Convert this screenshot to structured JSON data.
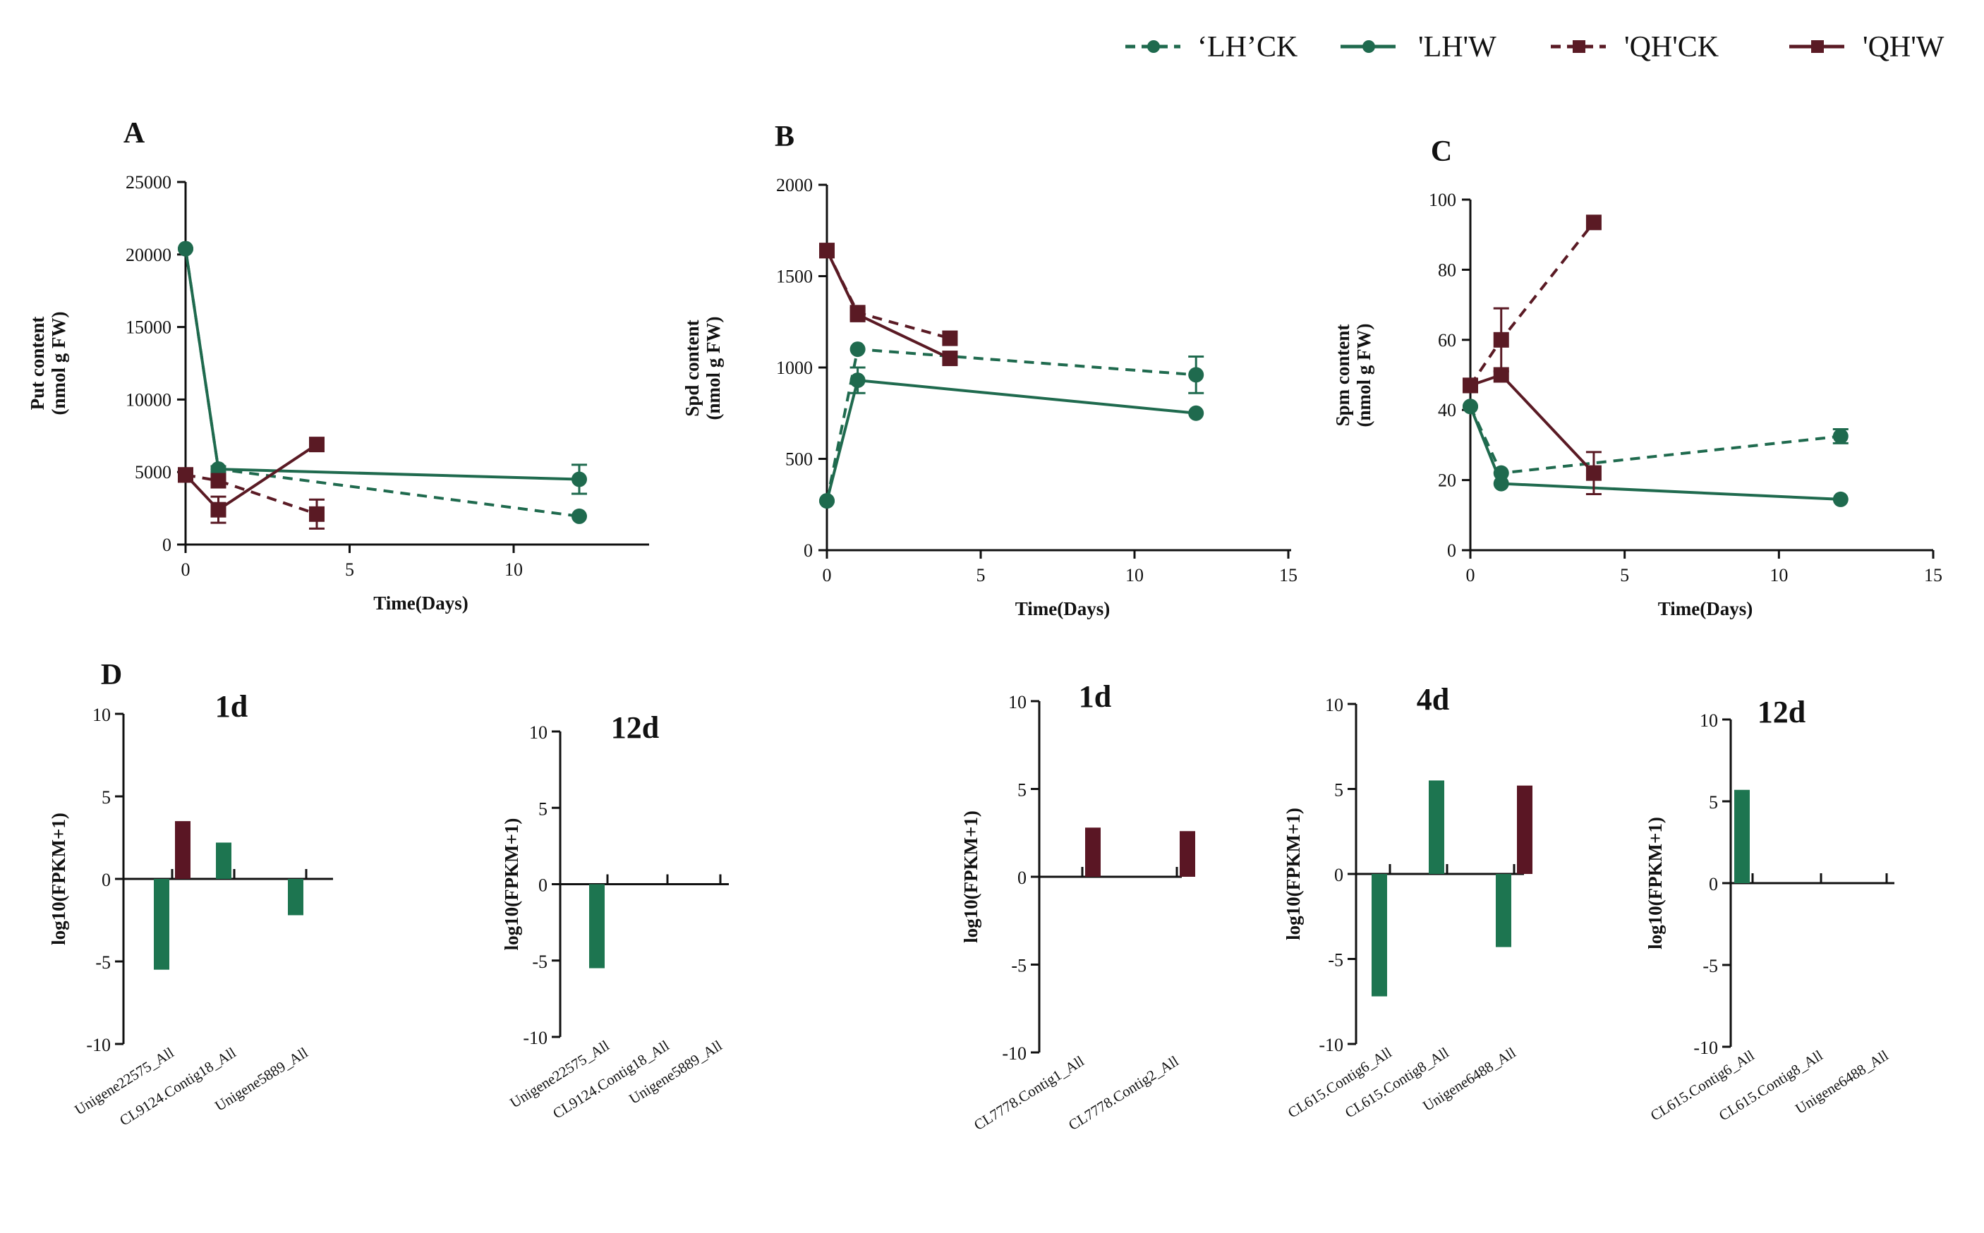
{
  "colors": {
    "lh": "#1f6a4e",
    "qh": "#5a1a24",
    "lh_bar": "#1d7550",
    "qh_bar": "#5a1624"
  },
  "legend": [
    {
      "label": "‘LH’CK",
      "series": "lh",
      "dashed": true,
      "marker": "circle"
    },
    {
      "label": "'LH'W",
      "series": "lh",
      "dashed": false,
      "marker": "circle"
    },
    {
      "label": "'QH'CK",
      "series": "qh",
      "dashed": true,
      "marker": "square"
    },
    {
      "label": "'QH'W",
      "series": "qh",
      "dashed": false,
      "marker": "square"
    }
  ],
  "chart_data": [
    {
      "id": "A",
      "letter": "A",
      "type": "line",
      "xlabel": "Time(Days)",
      "ylabel": [
        "Put content",
        "(nmol g FW)"
      ],
      "xlim": [
        0,
        14
      ],
      "ylim": [
        0,
        25000
      ],
      "xticks": [
        "0",
        "5",
        "10"
      ],
      "yticks": [
        "0",
        "5000",
        "10000",
        "15000",
        "20000",
        "25000"
      ],
      "series": [
        {
          "name": "‘LH’CK",
          "group": "lh",
          "dashed": true,
          "marker": "circle",
          "x": [
            0,
            1,
            12
          ],
          "y": [
            20400,
            5200,
            1950
          ],
          "err": [
            0,
            0,
            0
          ]
        },
        {
          "name": "'LH'W",
          "group": "lh",
          "dashed": false,
          "marker": "circle",
          "x": [
            0,
            1,
            12
          ],
          "y": [
            20400,
            5200,
            4500
          ],
          "err": [
            0,
            200,
            1000
          ]
        },
        {
          "name": "'QH'CK",
          "group": "qh",
          "dashed": true,
          "marker": "square",
          "x": [
            0,
            1,
            4
          ],
          "y": [
            4800,
            4400,
            2100
          ],
          "err": [
            0,
            0,
            1000
          ]
        },
        {
          "name": "'QH'W",
          "group": "qh",
          "dashed": false,
          "marker": "square",
          "x": [
            0,
            1,
            4
          ],
          "y": [
            4800,
            2400,
            6900
          ],
          "err": [
            0,
            900,
            0
          ]
        }
      ]
    },
    {
      "id": "B",
      "letter": "B",
      "type": "line",
      "xlabel": "Time(Days)",
      "ylabel": [
        "Spd content",
        "(nmol g FW)"
      ],
      "xlim": [
        0,
        15
      ],
      "ylim": [
        0,
        2000
      ],
      "xticks": [
        "0",
        "5",
        "10",
        "15"
      ],
      "yticks": [
        "0",
        "500",
        "1000",
        "1500",
        "2000"
      ],
      "series": [
        {
          "name": "‘LH’CK",
          "group": "lh",
          "dashed": true,
          "marker": "circle",
          "x": [
            0,
            1,
            12
          ],
          "y": [
            270,
            1100,
            960
          ],
          "err": [
            0,
            0,
            100
          ]
        },
        {
          "name": "'LH'W",
          "group": "lh",
          "dashed": false,
          "marker": "circle",
          "x": [
            0,
            1,
            12
          ],
          "y": [
            270,
            930,
            750
          ],
          "err": [
            0,
            70,
            0
          ]
        },
        {
          "name": "'QH'CK",
          "group": "qh",
          "dashed": true,
          "marker": "square",
          "x": [
            0,
            1,
            4
          ],
          "y": [
            1640,
            1300,
            1160
          ],
          "err": [
            0,
            0,
            0
          ]
        },
        {
          "name": "'QH'W",
          "group": "qh",
          "dashed": false,
          "marker": "square",
          "x": [
            0,
            1,
            4
          ],
          "y": [
            1640,
            1290,
            1050
          ],
          "err": [
            0,
            0,
            0
          ]
        }
      ]
    },
    {
      "id": "C",
      "letter": "C",
      "type": "line",
      "xlabel": "Time(Days)",
      "ylabel": [
        "Spm content",
        "(nmol g FW)"
      ],
      "xlim": [
        0,
        15
      ],
      "ylim": [
        0,
        100
      ],
      "xticks": [
        "0",
        "5",
        "10",
        "15"
      ],
      "yticks": [
        "0",
        "20",
        "40",
        "60",
        "80",
        "100"
      ],
      "series": [
        {
          "name": "‘LH’CK",
          "group": "lh",
          "dashed": true,
          "marker": "circle",
          "x": [
            0,
            1,
            12
          ],
          "y": [
            41,
            22,
            32.5
          ],
          "err": [
            0,
            0,
            2
          ]
        },
        {
          "name": "'LH'W",
          "group": "lh",
          "dashed": false,
          "marker": "circle",
          "x": [
            0,
            1,
            12
          ],
          "y": [
            41,
            19,
            14.5
          ],
          "err": [
            0,
            0,
            0
          ]
        },
        {
          "name": "'QH'CK",
          "group": "qh",
          "dashed": true,
          "marker": "square",
          "x": [
            0,
            1,
            4
          ],
          "y": [
            47,
            60,
            93.5
          ],
          "err": [
            0,
            9,
            0
          ]
        },
        {
          "name": "'QH'W",
          "group": "qh",
          "dashed": false,
          "marker": "square",
          "x": [
            0,
            1,
            4
          ],
          "y": [
            47,
            50,
            22
          ],
          "err": [
            0,
            0,
            6
          ]
        }
      ]
    },
    {
      "id": "D1",
      "letter": "D",
      "type": "bar",
      "title": "1d",
      "ylabel": "log10(FPKM+1)",
      "ylim": [
        -10,
        10
      ],
      "yticks": [
        "-10",
        "-5",
        "0",
        "5",
        "10"
      ],
      "categories": [
        "Unigene22575_All",
        "CL9124.Contig18_All",
        "Unigene5889_All"
      ],
      "series": [
        {
          "name": "LH",
          "group": "lh_bar",
          "values": [
            -5.5,
            2.2,
            -2.2
          ]
        },
        {
          "name": "QH",
          "group": "qh_bar",
          "values": [
            3.5,
            0,
            0
          ]
        }
      ]
    },
    {
      "id": "D2",
      "type": "bar",
      "title": "12d",
      "ylabel": "log10(FPKM+1)",
      "ylim": [
        -10,
        10
      ],
      "yticks": [
        "-10",
        "-5",
        "0",
        "5",
        "10"
      ],
      "categories": [
        "Unigene22575_All",
        "CL9124.Contig18_All",
        "Unigene5889_All"
      ],
      "series": [
        {
          "name": "LH",
          "group": "lh_bar",
          "values": [
            -5.5,
            0,
            0
          ]
        },
        {
          "name": "QH",
          "group": "qh_bar",
          "values": [
            0,
            0,
            0
          ]
        }
      ]
    },
    {
      "id": "D3",
      "type": "bar",
      "title": "1d",
      "ylabel": "log10(FPKM+1)",
      "ylim": [
        -10,
        10
      ],
      "yticks": [
        "-10",
        "-5",
        "0",
        "5",
        "10"
      ],
      "categories": [
        "CL7778.Contig1_All",
        "CL7778.Contig2_All"
      ],
      "series": [
        {
          "name": "LH",
          "group": "lh_bar",
          "values": [
            0,
            0
          ]
        },
        {
          "name": "QH",
          "group": "qh_bar",
          "values": [
            2.8,
            2.6
          ]
        }
      ]
    },
    {
      "id": "D4",
      "type": "bar",
      "title": "4d",
      "ylabel": "log10(FPKM+1)",
      "ylim": [
        -10,
        10
      ],
      "yticks": [
        "-10",
        "-5",
        "0",
        "5",
        "10"
      ],
      "categories": [
        "CL615.Contig6_All",
        "CL615.Contig8_All",
        "Unigene6488_All"
      ],
      "series": [
        {
          "name": "LH",
          "group": "lh_bar",
          "values": [
            -7.2,
            5.5,
            -4.3
          ]
        },
        {
          "name": "QH",
          "group": "qh_bar",
          "values": [
            0,
            0,
            5.2
          ]
        }
      ]
    },
    {
      "id": "D5",
      "type": "bar",
      "title": "12d",
      "ylabel": "log10(FPKM+1)",
      "ylim": [
        -10,
        10
      ],
      "yticks": [
        "-10",
        "-5",
        "0",
        "5",
        "10"
      ],
      "categories": [
        "CL615.Contig6_All",
        "CL615.Contig8_All",
        "Unigene6488_All"
      ],
      "series": [
        {
          "name": "LH",
          "group": "lh_bar",
          "values": [
            5.7,
            0,
            0
          ]
        },
        {
          "name": "QH",
          "group": "qh_bar",
          "values": [
            0,
            0,
            0
          ]
        }
      ]
    }
  ]
}
